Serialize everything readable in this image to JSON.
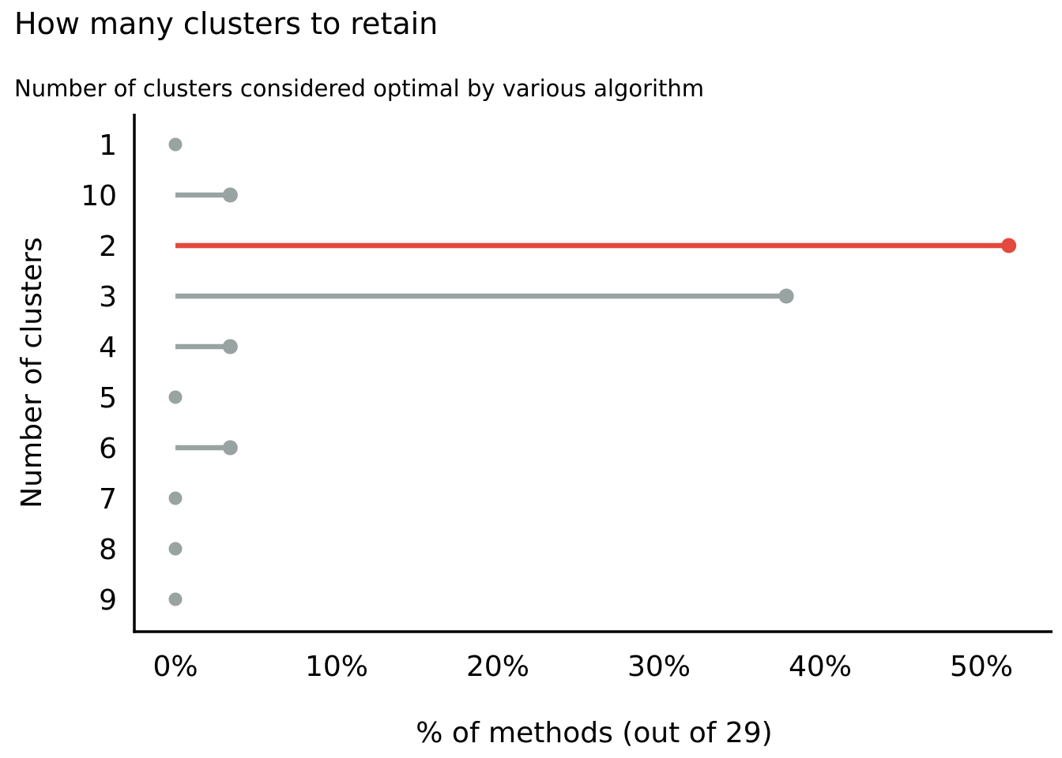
{
  "chart_data": {
    "type": "bar",
    "variant": "lollipop",
    "orientation": "horizontal",
    "title": "How many clusters to retain",
    "subtitle": "Number of clusters considered optimal by various algorithm",
    "xlabel": "% of methods (out of 29)",
    "ylabel": "Number of clusters",
    "categories": [
      "1",
      "10",
      "2",
      "3",
      "4",
      "5",
      "6",
      "7",
      "8",
      "9"
    ],
    "values_pct": [
      0,
      3.4,
      51.7,
      37.9,
      3.4,
      0,
      3.4,
      0,
      0,
      0
    ],
    "highlight_category": "2",
    "x_tick_labels": [
      "0%",
      "10%",
      "20%",
      "30%",
      "40%",
      "50%"
    ],
    "x_tick_values": [
      0,
      10,
      20,
      30,
      40,
      50
    ],
    "xlim": [
      0,
      54.4
    ],
    "grid": false,
    "legend": "none",
    "colors": {
      "stem_default": "#98A3A2",
      "stem_highlight": "#E3493C",
      "axis": "#000000",
      "text": "#000000"
    }
  }
}
